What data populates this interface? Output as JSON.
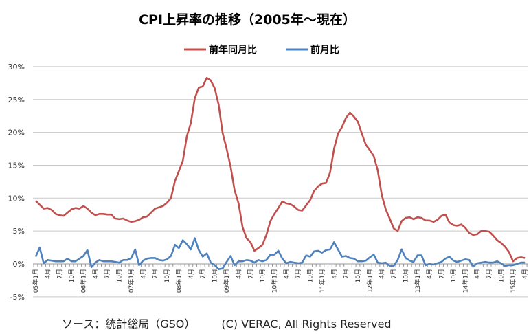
{
  "chart_data": {
    "type": "line",
    "title": "CPI上昇率の推移（2005年～現在）",
    "xlabel": "",
    "ylabel": "",
    "ylim": [
      -5,
      30
    ],
    "y_ticks": [
      "-5%",
      "0%",
      "5%",
      "10%",
      "15%",
      "20%",
      "25%",
      "30%"
    ],
    "y_tick_values": [
      -5,
      0,
      5,
      10,
      15,
      20,
      25,
      30
    ],
    "grid": true,
    "legend_position": "top-center",
    "x_start": "2005-01",
    "x_tick_labels": [
      "05年1月",
      "4月",
      "7月",
      "10月",
      "06年1月",
      "4月",
      "7月",
      "10月",
      "07年1月",
      "4月",
      "7月",
      "10月",
      "08年1月",
      "4月",
      "7月",
      "10月",
      "09年1月",
      "4月",
      "7月",
      "10月",
      "10年1月",
      "4月",
      "7月",
      "10月",
      "11年1月",
      "4月",
      "7月",
      "10月",
      "12年1月",
      "4月",
      "7月",
      "10月",
      "13年1月",
      "4月",
      "7月",
      "10月",
      "14年1月",
      "4月",
      "7月",
      "10月",
      "15年1月",
      "4月"
    ],
    "series": [
      {
        "name": "前年同月比",
        "color": "#C0504D",
        "values": [
          9.6,
          9.0,
          8.4,
          8.5,
          8.2,
          7.6,
          7.4,
          7.3,
          7.8,
          8.3,
          8.5,
          8.4,
          8.8,
          8.4,
          7.8,
          7.4,
          7.6,
          7.6,
          7.5,
          7.5,
          6.9,
          6.8,
          6.9,
          6.6,
          6.4,
          6.5,
          6.7,
          7.1,
          7.2,
          7.8,
          8.4,
          8.6,
          8.8,
          9.3,
          10.0,
          12.6,
          14.1,
          15.7,
          19.4,
          21.4,
          25.2,
          26.8,
          27.0,
          28.3,
          27.9,
          26.7,
          24.2,
          19.9,
          17.5,
          14.8,
          11.2,
          9.2,
          5.6,
          3.9,
          3.3,
          2.0,
          2.4,
          2.9,
          4.4,
          6.5,
          7.6,
          8.5,
          9.5,
          9.2,
          9.1,
          8.7,
          8.2,
          8.1,
          8.9,
          9.7,
          11.1,
          11.8,
          12.2,
          12.3,
          13.9,
          17.5,
          19.8,
          20.8,
          22.2,
          23.0,
          22.4,
          21.6,
          19.8,
          18.1,
          17.3,
          16.4,
          14.2,
          10.5,
          8.3,
          6.9,
          5.4,
          5.0,
          6.5,
          7.0,
          7.1,
          6.8,
          7.1,
          7.0,
          6.6,
          6.6,
          6.4,
          6.7,
          7.3,
          7.5,
          6.3,
          5.9,
          5.8,
          6.0,
          5.5,
          4.7,
          4.4,
          4.5,
          5.0,
          5.0,
          4.9,
          4.3,
          3.6,
          3.2,
          2.6,
          1.8,
          0.4,
          0.9,
          1.0,
          0.9
        ]
      },
      {
        "name": "前月比",
        "color": "#4F81BD",
        "values": [
          1.1,
          2.5,
          0.1,
          0.6,
          0.5,
          0.4,
          0.4,
          0.4,
          0.8,
          0.4,
          0.4,
          0.8,
          1.2,
          2.1,
          -0.5,
          0.2,
          0.6,
          0.4,
          0.4,
          0.4,
          0.3,
          0.2,
          0.6,
          0.6,
          0.9,
          2.2,
          -0.2,
          0.5,
          0.8,
          0.9,
          0.9,
          0.6,
          0.5,
          0.7,
          1.2,
          2.9,
          2.4,
          3.6,
          3.0,
          2.2,
          3.9,
          2.1,
          1.1,
          1.6,
          0.2,
          -0.2,
          -0.8,
          -0.7,
          0.3,
          1.2,
          -0.2,
          0.4,
          0.4,
          0.6,
          0.5,
          0.2,
          0.6,
          0.4,
          0.6,
          1.4,
          1.4,
          2.0,
          0.8,
          0.1,
          0.3,
          0.2,
          0.1,
          0.2,
          1.3,
          1.1,
          1.9,
          2.0,
          1.7,
          2.1,
          2.2,
          3.3,
          2.2,
          1.1,
          1.2,
          0.9,
          0.8,
          0.4,
          0.4,
          0.5,
          1.0,
          1.4,
          0.2,
          0.1,
          0.2,
          -0.3,
          -0.3,
          0.6,
          2.2,
          0.9,
          0.5,
          0.3,
          1.3,
          1.3,
          -0.2,
          0.0,
          -0.1,
          0.1,
          0.3,
          0.8,
          1.1,
          0.5,
          0.3,
          0.5,
          0.7,
          0.6,
          -0.4,
          0.1,
          0.2,
          0.3,
          0.2,
          0.2,
          0.4,
          0.1,
          -0.3,
          -0.2,
          -0.2,
          0.0,
          0.2,
          0.2
        ]
      }
    ]
  },
  "footer": {
    "source": "ソース：統計総局（GSO）",
    "copyright": "(C) VERAC, All Rights Reserved"
  }
}
